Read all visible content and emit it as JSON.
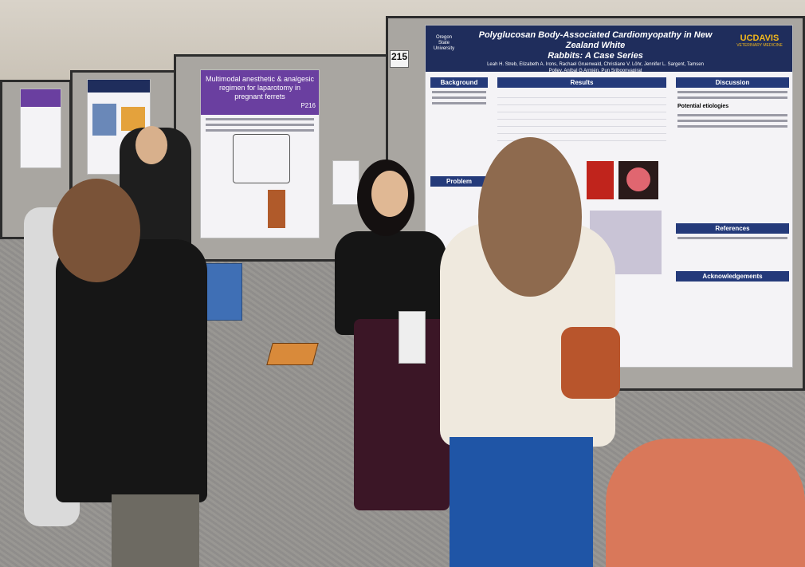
{
  "poster_main": {
    "title_line1": "Polyglucosan Body-Associated Cardiomyopathy in New Zealand White",
    "title_line2": "Rabbits: A Case Series",
    "authors_line1": "Leah H. Streb, Elizabeth A. Irons, Rachael Gruenwald, Christiane V. Löhr, Jennifer L. Sargent, Tamsen",
    "authors_line2": "Polley, Aníbal G Armién, Pun Sriboonyapirat",
    "logo_left": "Oregon State University",
    "logo_right": "UCDAVIS",
    "logo_right_sub": "VETERINARY MEDICINE",
    "sections": {
      "background": "Background",
      "results": "Results",
      "discussion": "Discussion",
      "problem": "Problem",
      "references": "References",
      "acknowledgements": "Acknowledgements"
    },
    "discussion_subhead": "Potential etiologies"
  },
  "board_number": "215",
  "poster_left": {
    "title": "Multimodal anesthetic & analgesic regimen for laparotomy in pregnant ferrets",
    "code": "P216"
  },
  "colors": {
    "poster_header": "#1f2d5c",
    "section_blue": "#243a7a",
    "left_poster_header": "#6a3fa0",
    "panel_gray": "#a9a6a1"
  }
}
